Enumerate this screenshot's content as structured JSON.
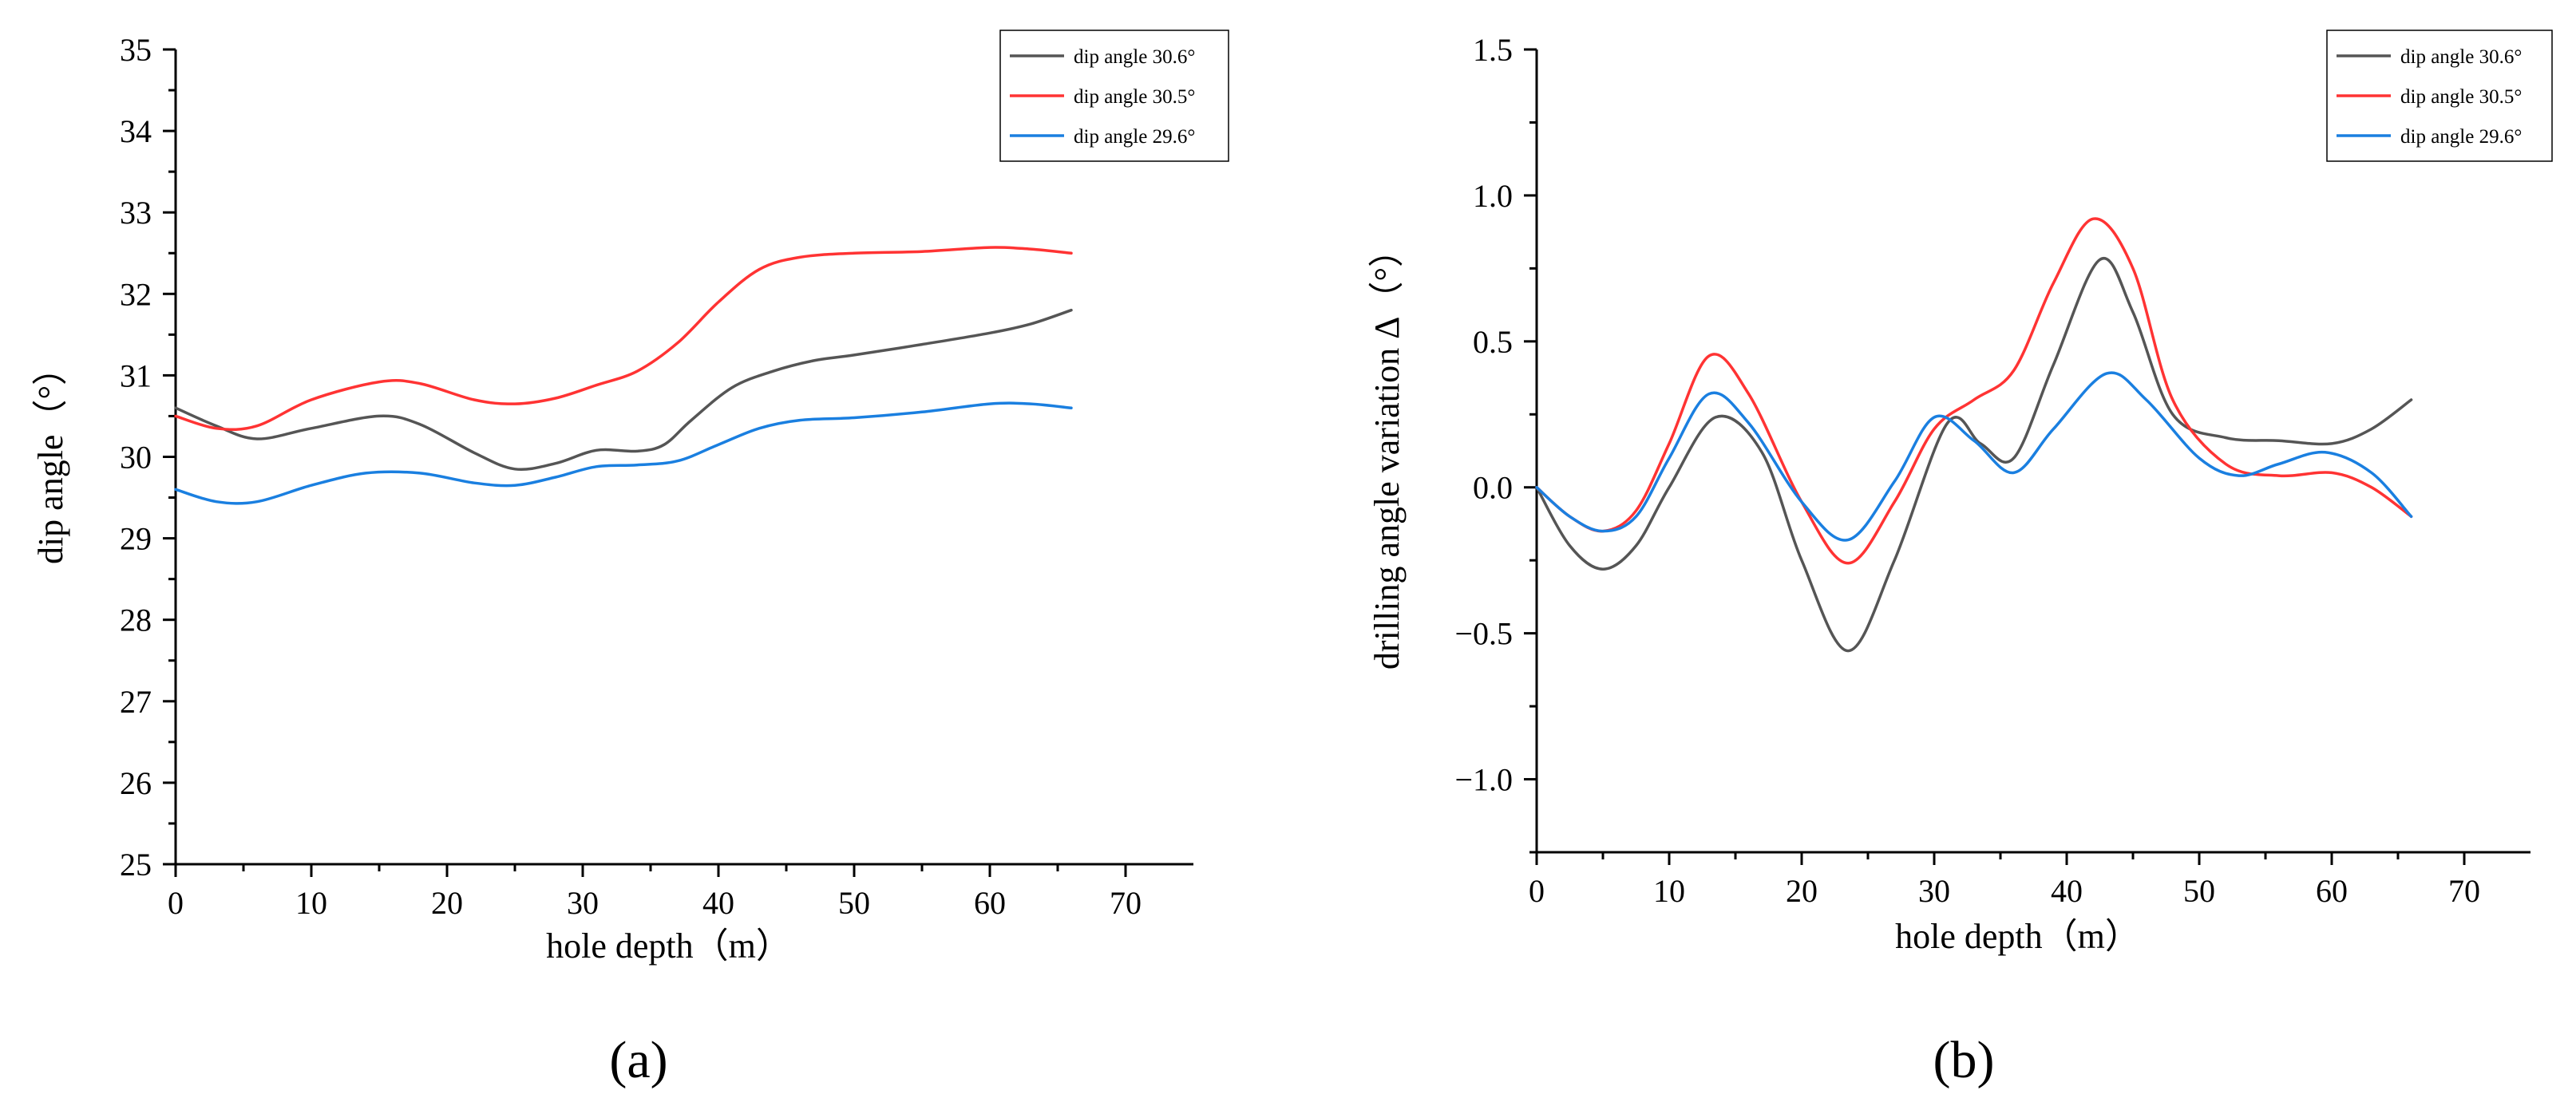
{
  "chart_data": [
    {
      "type": "line",
      "panel_label": "(a)",
      "xlabel": "hole depth（m）",
      "ylabel": "dip angle（°）",
      "xlim": [
        0,
        75
      ],
      "ylim": [
        25,
        35
      ],
      "xticks": [
        0,
        10,
        20,
        30,
        40,
        50,
        60,
        70
      ],
      "yticks": [
        25,
        26,
        27,
        28,
        29,
        30,
        31,
        32,
        33,
        34,
        35
      ],
      "legend_position": "top-right",
      "series": [
        {
          "name": "dip angle 30.6°",
          "color": "#555555",
          "x": [
            0,
            3,
            6,
            10,
            15,
            18,
            22,
            25,
            28,
            31,
            34,
            36,
            38,
            41,
            44,
            47,
            50,
            55,
            60,
            63,
            66
          ],
          "y": [
            30.6,
            30.38,
            30.22,
            30.35,
            30.5,
            30.4,
            30.05,
            29.85,
            29.92,
            30.08,
            30.07,
            30.15,
            30.45,
            30.85,
            31.05,
            31.18,
            31.25,
            31.38,
            31.52,
            31.63,
            31.8
          ]
        },
        {
          "name": "dip angle 30.5°",
          "color": "#ff3333",
          "x": [
            0,
            3,
            6,
            10,
            15,
            18,
            22,
            25,
            28,
            31,
            34,
            37,
            40,
            43,
            46,
            50,
            55,
            60,
            63,
            66
          ],
          "y": [
            30.5,
            30.35,
            30.38,
            30.7,
            30.92,
            30.9,
            30.7,
            30.65,
            30.72,
            30.88,
            31.05,
            31.4,
            31.9,
            32.3,
            32.45,
            32.5,
            32.52,
            32.57,
            32.55,
            32.5
          ]
        },
        {
          "name": "dip angle 29.6°",
          "color": "#1a7fe0",
          "x": [
            0,
            3,
            6,
            10,
            14,
            18,
            22,
            25,
            28,
            31,
            34,
            37,
            40,
            43,
            46,
            50,
            55,
            60,
            63,
            66
          ],
          "y": [
            29.6,
            29.45,
            29.45,
            29.65,
            29.8,
            29.8,
            29.68,
            29.65,
            29.75,
            29.88,
            29.9,
            29.95,
            30.15,
            30.35,
            30.45,
            30.48,
            30.55,
            30.65,
            30.65,
            30.6
          ]
        }
      ]
    },
    {
      "type": "line",
      "panel_label": "(b)",
      "xlabel": "hole depth（m）",
      "ylabel": "drilling angle variation Δ（°）",
      "xlim": [
        0,
        75
      ],
      "ylim": [
        -1.25,
        1.5
      ],
      "xticks": [
        0,
        10,
        20,
        30,
        40,
        50,
        60,
        70
      ],
      "yticks": [
        -1.0,
        -0.5,
        0.0,
        0.5,
        1.0,
        1.5
      ],
      "ytick_labels": [
        "−1.0",
        "−0.5",
        "0.0",
        "0.5",
        "1.0",
        "1.5"
      ],
      "legend_position": "top-right",
      "series": [
        {
          "name": "dip angle 30.6°",
          "color": "#555555",
          "x": [
            0,
            2.5,
            5,
            7.5,
            10,
            13.5,
            17,
            20,
            23.5,
            27,
            31,
            33.5,
            36,
            39,
            42.5,
            45,
            48,
            52,
            56,
            60,
            63,
            66
          ],
          "y": [
            0.0,
            -0.2,
            -0.28,
            -0.2,
            0.0,
            0.24,
            0.12,
            -0.25,
            -0.56,
            -0.25,
            0.22,
            0.15,
            0.1,
            0.42,
            0.78,
            0.6,
            0.25,
            0.17,
            0.16,
            0.15,
            0.2,
            0.3
          ]
        },
        {
          "name": "dip angle 30.5°",
          "color": "#ff3333",
          "x": [
            0,
            2.5,
            5,
            7.5,
            10,
            13,
            16,
            20,
            23.5,
            27,
            30,
            33,
            36,
            39,
            42,
            45,
            48,
            52,
            56,
            60,
            63,
            66
          ],
          "y": [
            0.0,
            -0.1,
            -0.15,
            -0.08,
            0.15,
            0.45,
            0.32,
            -0.05,
            -0.26,
            -0.05,
            0.2,
            0.3,
            0.4,
            0.7,
            0.92,
            0.75,
            0.3,
            0.08,
            0.04,
            0.05,
            0.0,
            -0.1
          ]
        },
        {
          "name": "dip angle 29.6°",
          "color": "#1a7fe0",
          "x": [
            0,
            2.5,
            5,
            7.5,
            10,
            13,
            16,
            20,
            23.5,
            27,
            30,
            33,
            36,
            39,
            43,
            46,
            50,
            53,
            56,
            59.5,
            63,
            66
          ],
          "y": [
            0.0,
            -0.1,
            -0.15,
            -0.1,
            0.1,
            0.32,
            0.22,
            -0.05,
            -0.18,
            0.02,
            0.24,
            0.16,
            0.05,
            0.2,
            0.39,
            0.3,
            0.1,
            0.04,
            0.08,
            0.12,
            0.05,
            -0.1
          ]
        }
      ]
    }
  ]
}
